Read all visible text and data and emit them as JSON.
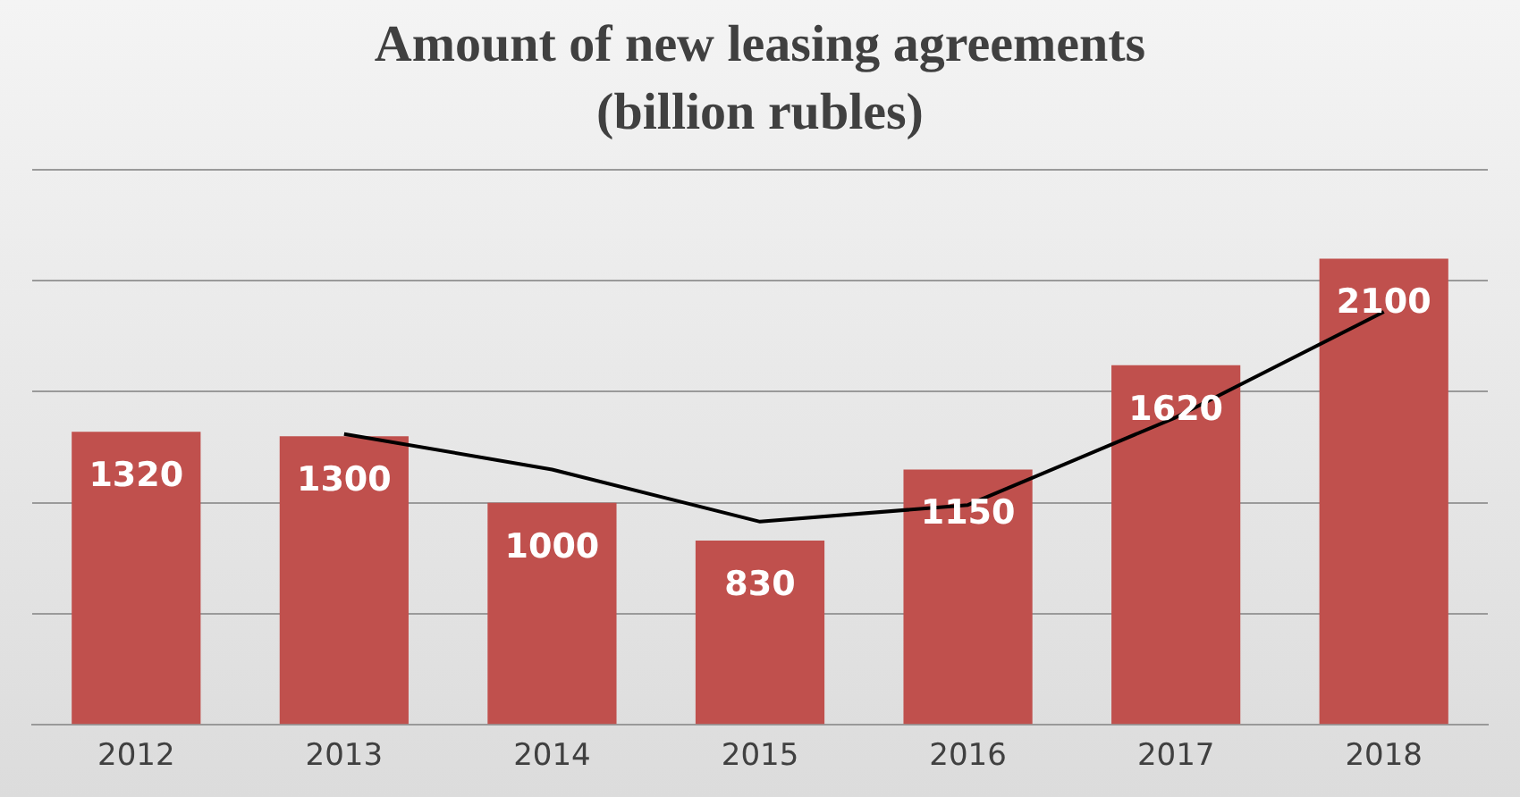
{
  "chart_data": {
    "type": "bar",
    "title": "Amount of new leasing agreements (billion rubles)",
    "categories": [
      "2012",
      "2013",
      "2014",
      "2015",
      "2016",
      "2017",
      "2018"
    ],
    "series": [
      {
        "color": "#c0504d",
        "values": [
          1320,
          1300,
          1000,
          830,
          1150,
          1620,
          2100
        ],
        "value_labels": [
          "1320",
          "1300",
          "1000",
          "830",
          "1150",
          "1620",
          "2100"
        ]
      },
      {
        "type": "line",
        "color": "#000000",
        "values": [
          null,
          1310,
          1150,
          915,
          990,
          1385,
          1860
        ]
      }
    ],
    "ylim": [
      0,
      2500
    ],
    "yticks": [
      {
        "value": 0,
        "label": null
      },
      {
        "value": 500,
        "label": null
      },
      {
        "value": 1000,
        "label": null
      },
      {
        "value": 1500,
        "label": null
      },
      {
        "value": 2000,
        "label": null
      },
      {
        "value": 2500,
        "label": null
      }
    ],
    "tick_labels": "x",
    "grid": "y",
    "marker": "none",
    "legend": false
  }
}
